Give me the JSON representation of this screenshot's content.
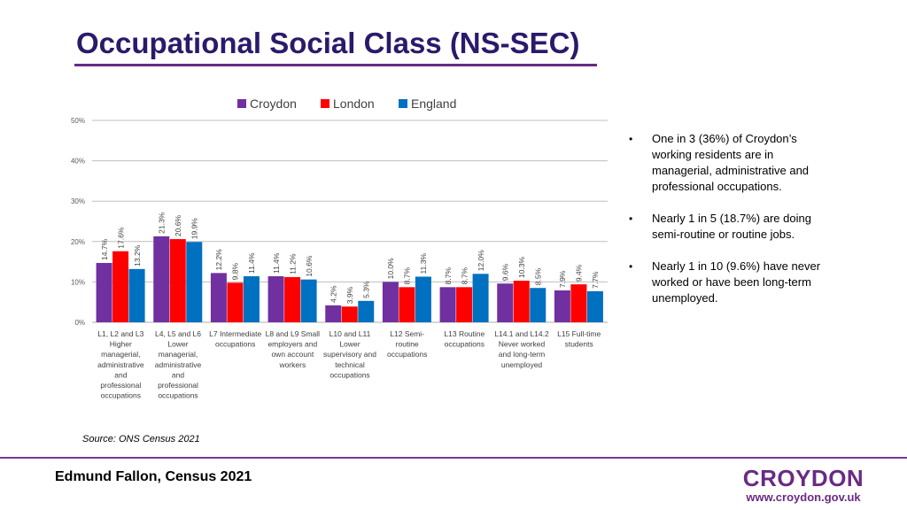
{
  "page": {
    "title": "Occupational Social Class (NS-SEC)",
    "source": "Source: ONS Census 2021",
    "author": "Edmund Fallon, Census 2021",
    "logo_name": "CROYDON",
    "logo_url": "www.croydon.gov.uk"
  },
  "bullets": [
    "One in 3 (36%) of Croydon’s working residents are in managerial, administrative and professional occupations.",
    "Nearly 1 in 5 (18.7%) are doing semi-routine or routine jobs.",
    "Nearly 1 in 10 (9.6%) have never worked or have been long-term unemployed."
  ],
  "colors": {
    "Croydon": "#7030a0",
    "London": "#ff0000",
    "England": "#0070c0",
    "grid": "#bfbfbf",
    "title": "#2b1a6b",
    "brand": "#6a2a85"
  },
  "chart_data": {
    "type": "bar",
    "categories": [
      [
        "L1, L2 and L3",
        "Higher",
        "managerial,",
        "administrative",
        "and",
        "professional",
        "occupations"
      ],
      [
        "L4, L5 and L6",
        "Lower",
        "managerial,",
        "administrative",
        "and",
        "professional",
        "occupations"
      ],
      [
        "L7 Intermediate",
        "occupations"
      ],
      [
        "L8 and L9 Small",
        "employers and",
        "own account",
        "workers"
      ],
      [
        "L10 and L11",
        "Lower",
        "supervisory and",
        "technical",
        "occupations"
      ],
      [
        "L12 Semi-",
        "routine",
        "occupations"
      ],
      [
        "L13 Routine",
        "occupations"
      ],
      [
        "L14.1 and L14.2",
        "Never worked",
        "and long-term",
        "unemployed"
      ],
      [
        "L15 Full-time",
        "students"
      ]
    ],
    "series": [
      {
        "name": "Croydon",
        "values": [
          14.7,
          21.3,
          12.2,
          11.4,
          4.2,
          10.0,
          8.7,
          9.6,
          7.9
        ]
      },
      {
        "name": "London",
        "values": [
          17.6,
          20.6,
          9.8,
          11.2,
          3.9,
          8.7,
          8.7,
          10.3,
          9.4
        ]
      },
      {
        "name": "England",
        "values": [
          13.2,
          19.9,
          11.4,
          10.6,
          5.3,
          11.3,
          12.0,
          8.5,
          7.7
        ]
      }
    ],
    "ylim": [
      0,
      50
    ],
    "yticks": [
      "0%",
      "10%",
      "20%",
      "30%",
      "40%",
      "50%"
    ],
    "legend": "top",
    "grid": true
  }
}
